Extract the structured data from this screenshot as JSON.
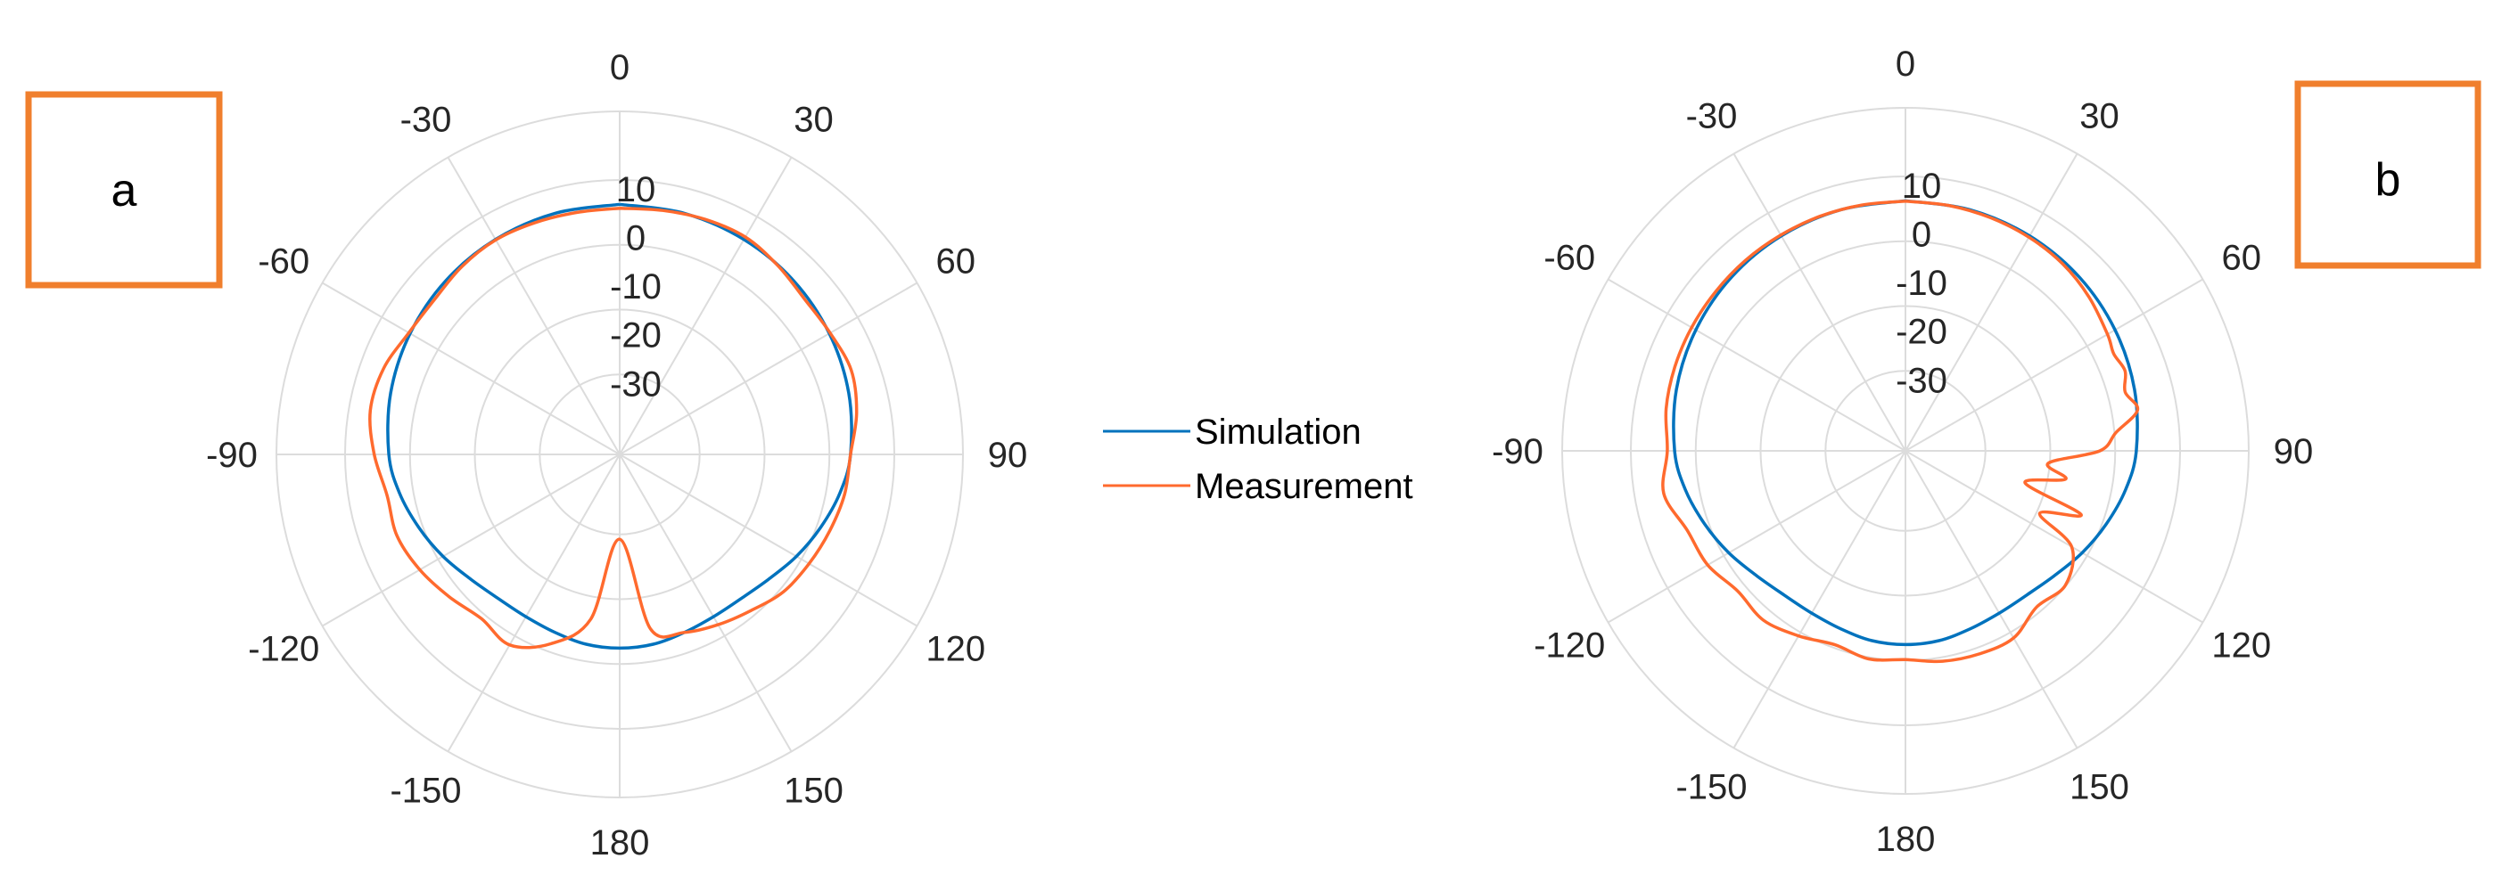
{
  "colors": {
    "simulation": "#0072BD",
    "measurement": "#FF6A2E",
    "grid": "#DCDCDC",
    "label_box": "#F07F2D"
  },
  "legend": {
    "simulation_label": "Simulation",
    "measurement_label": "Measurement"
  },
  "chart_data": [
    {
      "type": "polar-line",
      "panel_label": "a",
      "angle_ticks": [
        "0",
        "30",
        "60",
        "90",
        "120",
        "150",
        "180",
        "-150",
        "-120",
        "-90",
        "-60",
        "-30"
      ],
      "radial_ticks": [
        "10",
        "0",
        "-10",
        "-20",
        "-30"
      ],
      "rlim": [
        -30,
        10
      ],
      "grid": true,
      "series": [
        {
          "name": "Simulation",
          "theta": [
            0,
            15,
            30,
            45,
            60,
            75,
            90,
            100,
            110,
            120,
            130,
            140,
            150,
            160,
            170,
            180,
            190,
            200,
            210,
            220,
            230,
            240,
            250,
            260,
            270,
            285,
            300,
            315,
            330,
            345,
            360
          ],
          "r": [
            5,
            4.9,
            4.6,
            4.1,
            3.3,
            2.3,
            1.0,
            -0.5,
            -2.5,
            -4.5,
            -6.5,
            -7.7,
            -7.9,
            -7.5,
            -6.8,
            -6.6,
            -6.8,
            -7.5,
            -7.9,
            -7.7,
            -6.5,
            -4.5,
            -2.5,
            -0.5,
            1.0,
            2.3,
            3.3,
            4.1,
            4.6,
            4.9,
            5
          ]
        },
        {
          "name": "Measurement",
          "theta": [
            0,
            10,
            20,
            30,
            40,
            50,
            60,
            70,
            80,
            90,
            100,
            110,
            120,
            130,
            140,
            150,
            160,
            170,
            180,
            190,
            200,
            210,
            220,
            230,
            240,
            250,
            260,
            270,
            280,
            290,
            300,
            310,
            320,
            330,
            340,
            350,
            360
          ],
          "r": [
            4.2,
            4.5,
            5.0,
            5.2,
            4.2,
            3.2,
            3.5,
            4.2,
            3.0,
            1.0,
            0.5,
            -0.5,
            -1.5,
            -2.5,
            -4.5,
            -6,
            -7.5,
            -10,
            -29,
            -12,
            -5,
            -1.2,
            -2.3,
            -0.8,
            1.0,
            2.3,
            2.1,
            4.0,
            5.6,
            5.2,
            3.6,
            3.2,
            4.0,
            4.5,
            4.3,
            4.1,
            4.2
          ]
        }
      ]
    },
    {
      "type": "polar-line",
      "panel_label": "b",
      "angle_ticks": [
        "0",
        "30",
        "60",
        "90",
        "120",
        "150",
        "180",
        "-150",
        "-120",
        "-90",
        "-60",
        "-30"
      ],
      "radial_ticks": [
        "10",
        "0",
        "-10",
        "-20",
        "-30"
      ],
      "rlim": [
        -30,
        10
      ],
      "grid": true,
      "series": [
        {
          "name": "Simulation",
          "theta": [
            0,
            15,
            30,
            45,
            60,
            75,
            90,
            100,
            110,
            120,
            130,
            140,
            150,
            160,
            170,
            180,
            190,
            200,
            210,
            220,
            230,
            240,
            250,
            260,
            270,
            285,
            300,
            315,
            330,
            345,
            360
          ],
          "r": [
            5,
            4.9,
            4.6,
            4.1,
            3.3,
            2.3,
            1.0,
            -0.5,
            -2.5,
            -4.5,
            -6.5,
            -7.7,
            -7.9,
            -7.5,
            -6.8,
            -6.6,
            -6.8,
            -7.5,
            -7.9,
            -7.7,
            -6.5,
            -4.5,
            -2.5,
            -0.5,
            1.0,
            2.3,
            3.3,
            4.1,
            4.6,
            4.9,
            5
          ]
        },
        {
          "name": "Measurement",
          "theta": [
            0,
            10,
            20,
            30,
            40,
            50,
            60,
            65,
            70,
            75,
            80,
            85,
            90,
            95,
            100,
            105,
            110,
            115,
            120,
            130,
            140,
            150,
            160,
            170,
            180,
            190,
            200,
            210,
            220,
            230,
            240,
            250,
            260,
            270,
            280,
            290,
            300,
            310,
            320,
            330,
            340,
            350,
            360
          ],
          "r": [
            4.9,
            4.8,
            4.6,
            4.3,
            3.8,
            2.8,
            1.5,
            0.8,
            1.6,
            0.3,
            2.0,
            -3.0,
            -6.5,
            -17,
            -13,
            -21,
            -8,
            -16,
            -7.0,
            -3.5,
            -4.5,
            -2.0,
            -2.0,
            -2.5,
            -3.5,
            -3.0,
            -4.0,
            -2.5,
            -1.0,
            -1.5,
            0.5,
            1.3,
            4.0,
            2.5,
            3.5,
            4.0,
            4.3,
            4.5,
            4.7,
            4.8,
            4.9,
            4.9,
            4.9
          ]
        }
      ]
    }
  ]
}
